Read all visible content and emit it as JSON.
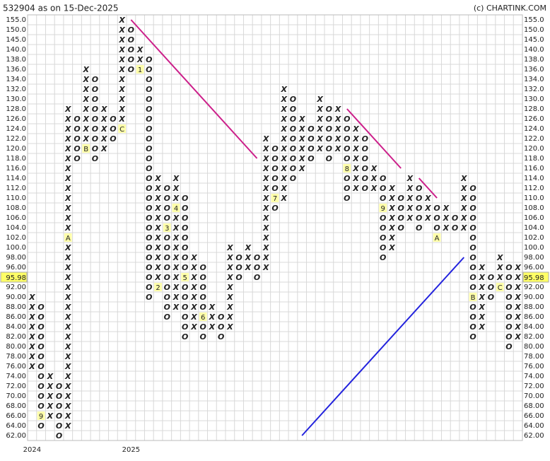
{
  "chart_data": {
    "type": "point-and-figure",
    "title": "532904 as on 15-Dec-2025",
    "source": "(c) CHARTINK.COM",
    "x_color": "#3a8a3a",
    "o_color": "#e03a3a",
    "marker_fill": "#ffffaa",
    "grid": true,
    "last_price": 95.98,
    "yticks": [
      {
        "value": 155,
        "label": "155.0"
      },
      {
        "value": 150,
        "label": "150.0"
      },
      {
        "value": 145,
        "label": "145.0"
      },
      {
        "value": 140,
        "label": "140.0"
      },
      {
        "value": 138,
        "label": "138.0"
      },
      {
        "value": 136,
        "label": "136.0"
      },
      {
        "value": 134,
        "label": "134.0"
      },
      {
        "value": 132,
        "label": "132.0"
      },
      {
        "value": 130,
        "label": "130.0"
      },
      {
        "value": 128,
        "label": "128.0"
      },
      {
        "value": 126,
        "label": "126.0"
      },
      {
        "value": 124,
        "label": "124.0"
      },
      {
        "value": 122,
        "label": "122.0"
      },
      {
        "value": 120,
        "label": "120.0"
      },
      {
        "value": 118,
        "label": "118.0"
      },
      {
        "value": 116,
        "label": "116.0"
      },
      {
        "value": 114,
        "label": "114.0"
      },
      {
        "value": 112,
        "label": "112.0"
      },
      {
        "value": 110,
        "label": "110.0"
      },
      {
        "value": 108,
        "label": "108.0"
      },
      {
        "value": 106,
        "label": "106.0"
      },
      {
        "value": 104,
        "label": "104.0"
      },
      {
        "value": 102,
        "label": "102.0"
      },
      {
        "value": 100,
        "label": "100.0"
      },
      {
        "value": 98,
        "label": "98.00"
      },
      {
        "value": 96,
        "label": "96.00"
      },
      {
        "value": 94,
        "label": "94.00"
      },
      {
        "value": 92,
        "label": "92.00"
      },
      {
        "value": 90,
        "label": "90.00"
      },
      {
        "value": 88,
        "label": "88.00"
      },
      {
        "value": 86,
        "label": "86.00"
      },
      {
        "value": 84,
        "label": "84.00"
      },
      {
        "value": 82,
        "label": "82.00"
      },
      {
        "value": 80,
        "label": "80.00"
      },
      {
        "value": 78,
        "label": "78.00"
      },
      {
        "value": 76,
        "label": "76.00"
      },
      {
        "value": 74,
        "label": "74.00"
      },
      {
        "value": 72,
        "label": "72.00"
      },
      {
        "value": 70,
        "label": "70.00"
      },
      {
        "value": 68,
        "label": "68.00"
      },
      {
        "value": 66,
        "label": "66.00"
      },
      {
        "value": 64,
        "label": "64.00"
      },
      {
        "value": 62,
        "label": "62.00"
      }
    ],
    "x_labels": [
      {
        "column": 0,
        "label": "2024"
      },
      {
        "column": 11,
        "label": "2025"
      }
    ],
    "columns": [
      {
        "type": "X",
        "top": 90,
        "bottom": 76
      },
      {
        "type": "O",
        "top": 88,
        "bottom": 64,
        "markers": [
          {
            "level": 66,
            "label": "9"
          }
        ]
      },
      {
        "type": "X",
        "top": 74,
        "bottom": 66
      },
      {
        "type": "O",
        "top": 72,
        "bottom": 62
      },
      {
        "type": "X",
        "top": 128,
        "bottom": 64,
        "markers": [
          {
            "level": 102,
            "label": "A"
          }
        ]
      },
      {
        "type": "O",
        "top": 126,
        "bottom": 118
      },
      {
        "type": "X",
        "top": 136,
        "bottom": 120,
        "markers": [
          {
            "level": 120,
            "label": "B"
          }
        ]
      },
      {
        "type": "O",
        "top": 134,
        "bottom": 118
      },
      {
        "type": "X",
        "top": 128,
        "bottom": 120
      },
      {
        "type": "O",
        "top": 126,
        "bottom": 122
      },
      {
        "type": "X",
        "top": 155,
        "bottom": 124,
        "markers": [
          {
            "level": 124,
            "label": "C"
          }
        ]
      },
      {
        "type": "O",
        "top": 150,
        "bottom": 136
      },
      {
        "type": "X",
        "top": 140,
        "bottom": 136,
        "markers": [
          {
            "level": 136,
            "label": "1"
          }
        ]
      },
      {
        "type": "O",
        "top": 138,
        "bottom": 90
      },
      {
        "type": "X",
        "top": 114,
        "bottom": 92,
        "markers": [
          {
            "level": 92,
            "label": "2"
          }
        ]
      },
      {
        "type": "O",
        "top": 112,
        "bottom": 86,
        "markers": [
          {
            "level": 104,
            "label": "3"
          }
        ]
      },
      {
        "type": "X",
        "top": 114,
        "bottom": 88,
        "markers": [
          {
            "level": 108,
            "label": "4"
          }
        ]
      },
      {
        "type": "O",
        "top": 110,
        "bottom": 82,
        "markers": [
          {
            "level": 94,
            "label": "5"
          }
        ]
      },
      {
        "type": "X",
        "top": 98,
        "bottom": 84
      },
      {
        "type": "O",
        "top": 96,
        "bottom": 82,
        "markers": [
          {
            "level": 86,
            "label": "6"
          }
        ]
      },
      {
        "type": "X",
        "top": 88,
        "bottom": 84
      },
      {
        "type": "O",
        "top": 86,
        "bottom": 82
      },
      {
        "type": "X",
        "top": 100,
        "bottom": 84
      },
      {
        "type": "O",
        "top": 98,
        "bottom": 94
      },
      {
        "type": "X",
        "top": 100,
        "bottom": 96
      },
      {
        "type": "O",
        "top": 98,
        "bottom": 94
      },
      {
        "type": "X",
        "top": 122,
        "bottom": 96
      },
      {
        "type": "O",
        "top": 120,
        "bottom": 108,
        "markers": [
          {
            "level": 110,
            "label": "7"
          }
        ]
      },
      {
        "type": "X",
        "top": 132,
        "bottom": 110
      },
      {
        "type": "O",
        "top": 130,
        "bottom": 114
      },
      {
        "type": "X",
        "top": 126,
        "bottom": 116
      },
      {
        "type": "O",
        "top": 124,
        "bottom": 118
      },
      {
        "type": "X",
        "top": 130,
        "bottom": 120
      },
      {
        "type": "O",
        "top": 128,
        "bottom": 118
      },
      {
        "type": "X",
        "top": 128,
        "bottom": 120
      },
      {
        "type": "O",
        "top": 126,
        "bottom": 110,
        "markers": [
          {
            "level": 116,
            "label": "8"
          }
        ]
      },
      {
        "type": "X",
        "top": 124,
        "bottom": 112
      },
      {
        "type": "O",
        "top": 122,
        "bottom": 112
      },
      {
        "type": "X",
        "top": 116,
        "bottom": 112
      },
      {
        "type": "O",
        "top": 114,
        "bottom": 98,
        "markers": [
          {
            "level": 108,
            "label": "9"
          }
        ]
      },
      {
        "type": "X",
        "top": 112,
        "bottom": 100
      },
      {
        "type": "O",
        "top": 110,
        "bottom": 104
      },
      {
        "type": "X",
        "top": 114,
        "bottom": 106
      },
      {
        "type": "O",
        "top": 112,
        "bottom": 104
      },
      {
        "type": "X",
        "top": 110,
        "bottom": 106
      },
      {
        "type": "O",
        "top": 108,
        "bottom": 102,
        "markers": [
          {
            "level": 102,
            "label": "A"
          }
        ]
      },
      {
        "type": "X",
        "top": 108,
        "bottom": 104
      },
      {
        "type": "O",
        "top": 106,
        "bottom": 104
      },
      {
        "type": "X",
        "top": 114,
        "bottom": 104
      },
      {
        "type": "O",
        "top": 112,
        "bottom": 82,
        "markers": [
          {
            "level": 90,
            "label": "B"
          }
        ]
      },
      {
        "type": "X",
        "top": 96,
        "bottom": 84
      },
      {
        "type": "O",
        "top": 94,
        "bottom": 90
      },
      {
        "type": "X",
        "top": 98,
        "bottom": 92,
        "markers": [
          {
            "level": 92,
            "label": "C"
          }
        ]
      },
      {
        "type": "O",
        "top": 96,
        "bottom": 80
      },
      {
        "type": "X",
        "top": 96,
        "bottom": 82
      }
    ],
    "trendlines": [
      {
        "color": "#cc1f8a",
        "points": [
          [
            11,
            155
          ],
          [
            25,
            118
          ]
        ]
      },
      {
        "color": "#cc1f8a",
        "points": [
          [
            35,
            128
          ],
          [
            41,
            116
          ]
        ]
      },
      {
        "color": "#cc1f8a",
        "points": [
          [
            43,
            114
          ],
          [
            45,
            110
          ]
        ]
      },
      {
        "color": "#2222dd",
        "points": [
          [
            30,
            62
          ],
          [
            48,
            98
          ]
        ]
      }
    ]
  }
}
